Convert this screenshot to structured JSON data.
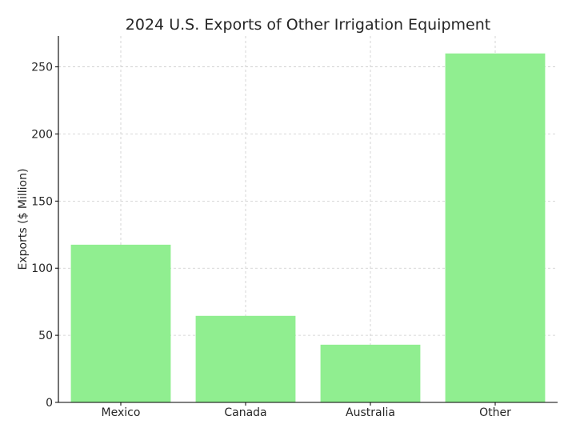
{
  "chart_data": {
    "type": "bar",
    "title": "2024 U.S. Exports of Other Irrigation Equipment",
    "xlabel": "",
    "ylabel": "Exports ($ Million)",
    "categories": [
      "Mexico",
      "Canada",
      "Australia",
      "Other"
    ],
    "values": [
      117.5,
      64.5,
      43,
      260
    ],
    "ylim": [
      0,
      273
    ],
    "yticks": [
      "0",
      "50",
      "100",
      "150",
      "200",
      "250"
    ],
    "grid": true,
    "bar_color": "#90ee90"
  }
}
